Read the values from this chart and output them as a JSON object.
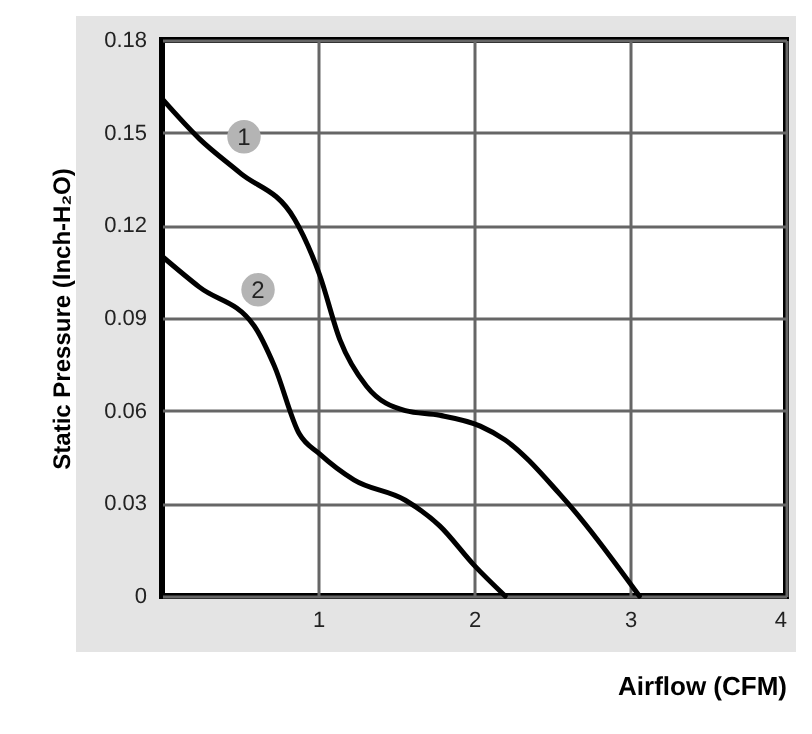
{
  "chart_data": {
    "type": "line",
    "xlabel": "Airflow (CFM)",
    "ylabel": "Static Pressure (Inch-H₂O)",
    "xlim": [
      0,
      4
    ],
    "xticks": [
      1,
      2,
      3,
      4
    ],
    "ylim": [
      0,
      0.18
    ],
    "yticks": [
      0,
      0.03,
      0.06,
      0.09,
      0.12,
      0.15,
      0.18
    ],
    "grid": true,
    "marker": "none",
    "line_style": "solid",
    "series": [
      {
        "name": "1",
        "color": "#000000",
        "x": [
          0,
          0.24,
          0.5,
          0.85,
          1.01,
          1.14,
          1.31,
          1.56,
          1.78,
          2.04,
          2.2,
          2.55,
          3.06
        ],
        "values": [
          0.161,
          0.148,
          0.137,
          0.122,
          0.104,
          0.083,
          0.068,
          0.06,
          0.0585,
          0.055,
          0.0505,
          0.033,
          0
        ]
      },
      {
        "name": "2",
        "color": "#000000",
        "x": [
          0,
          0.24,
          0.59,
          0.72,
          0.88,
          1.01,
          1.23,
          1.56,
          1.78,
          2.0,
          2.2
        ],
        "values": [
          0.11,
          0.1,
          0.0875,
          0.0745,
          0.0525,
          0.046,
          0.0376,
          0.031,
          0.0227,
          0.01,
          0
        ]
      }
    ]
  }
}
